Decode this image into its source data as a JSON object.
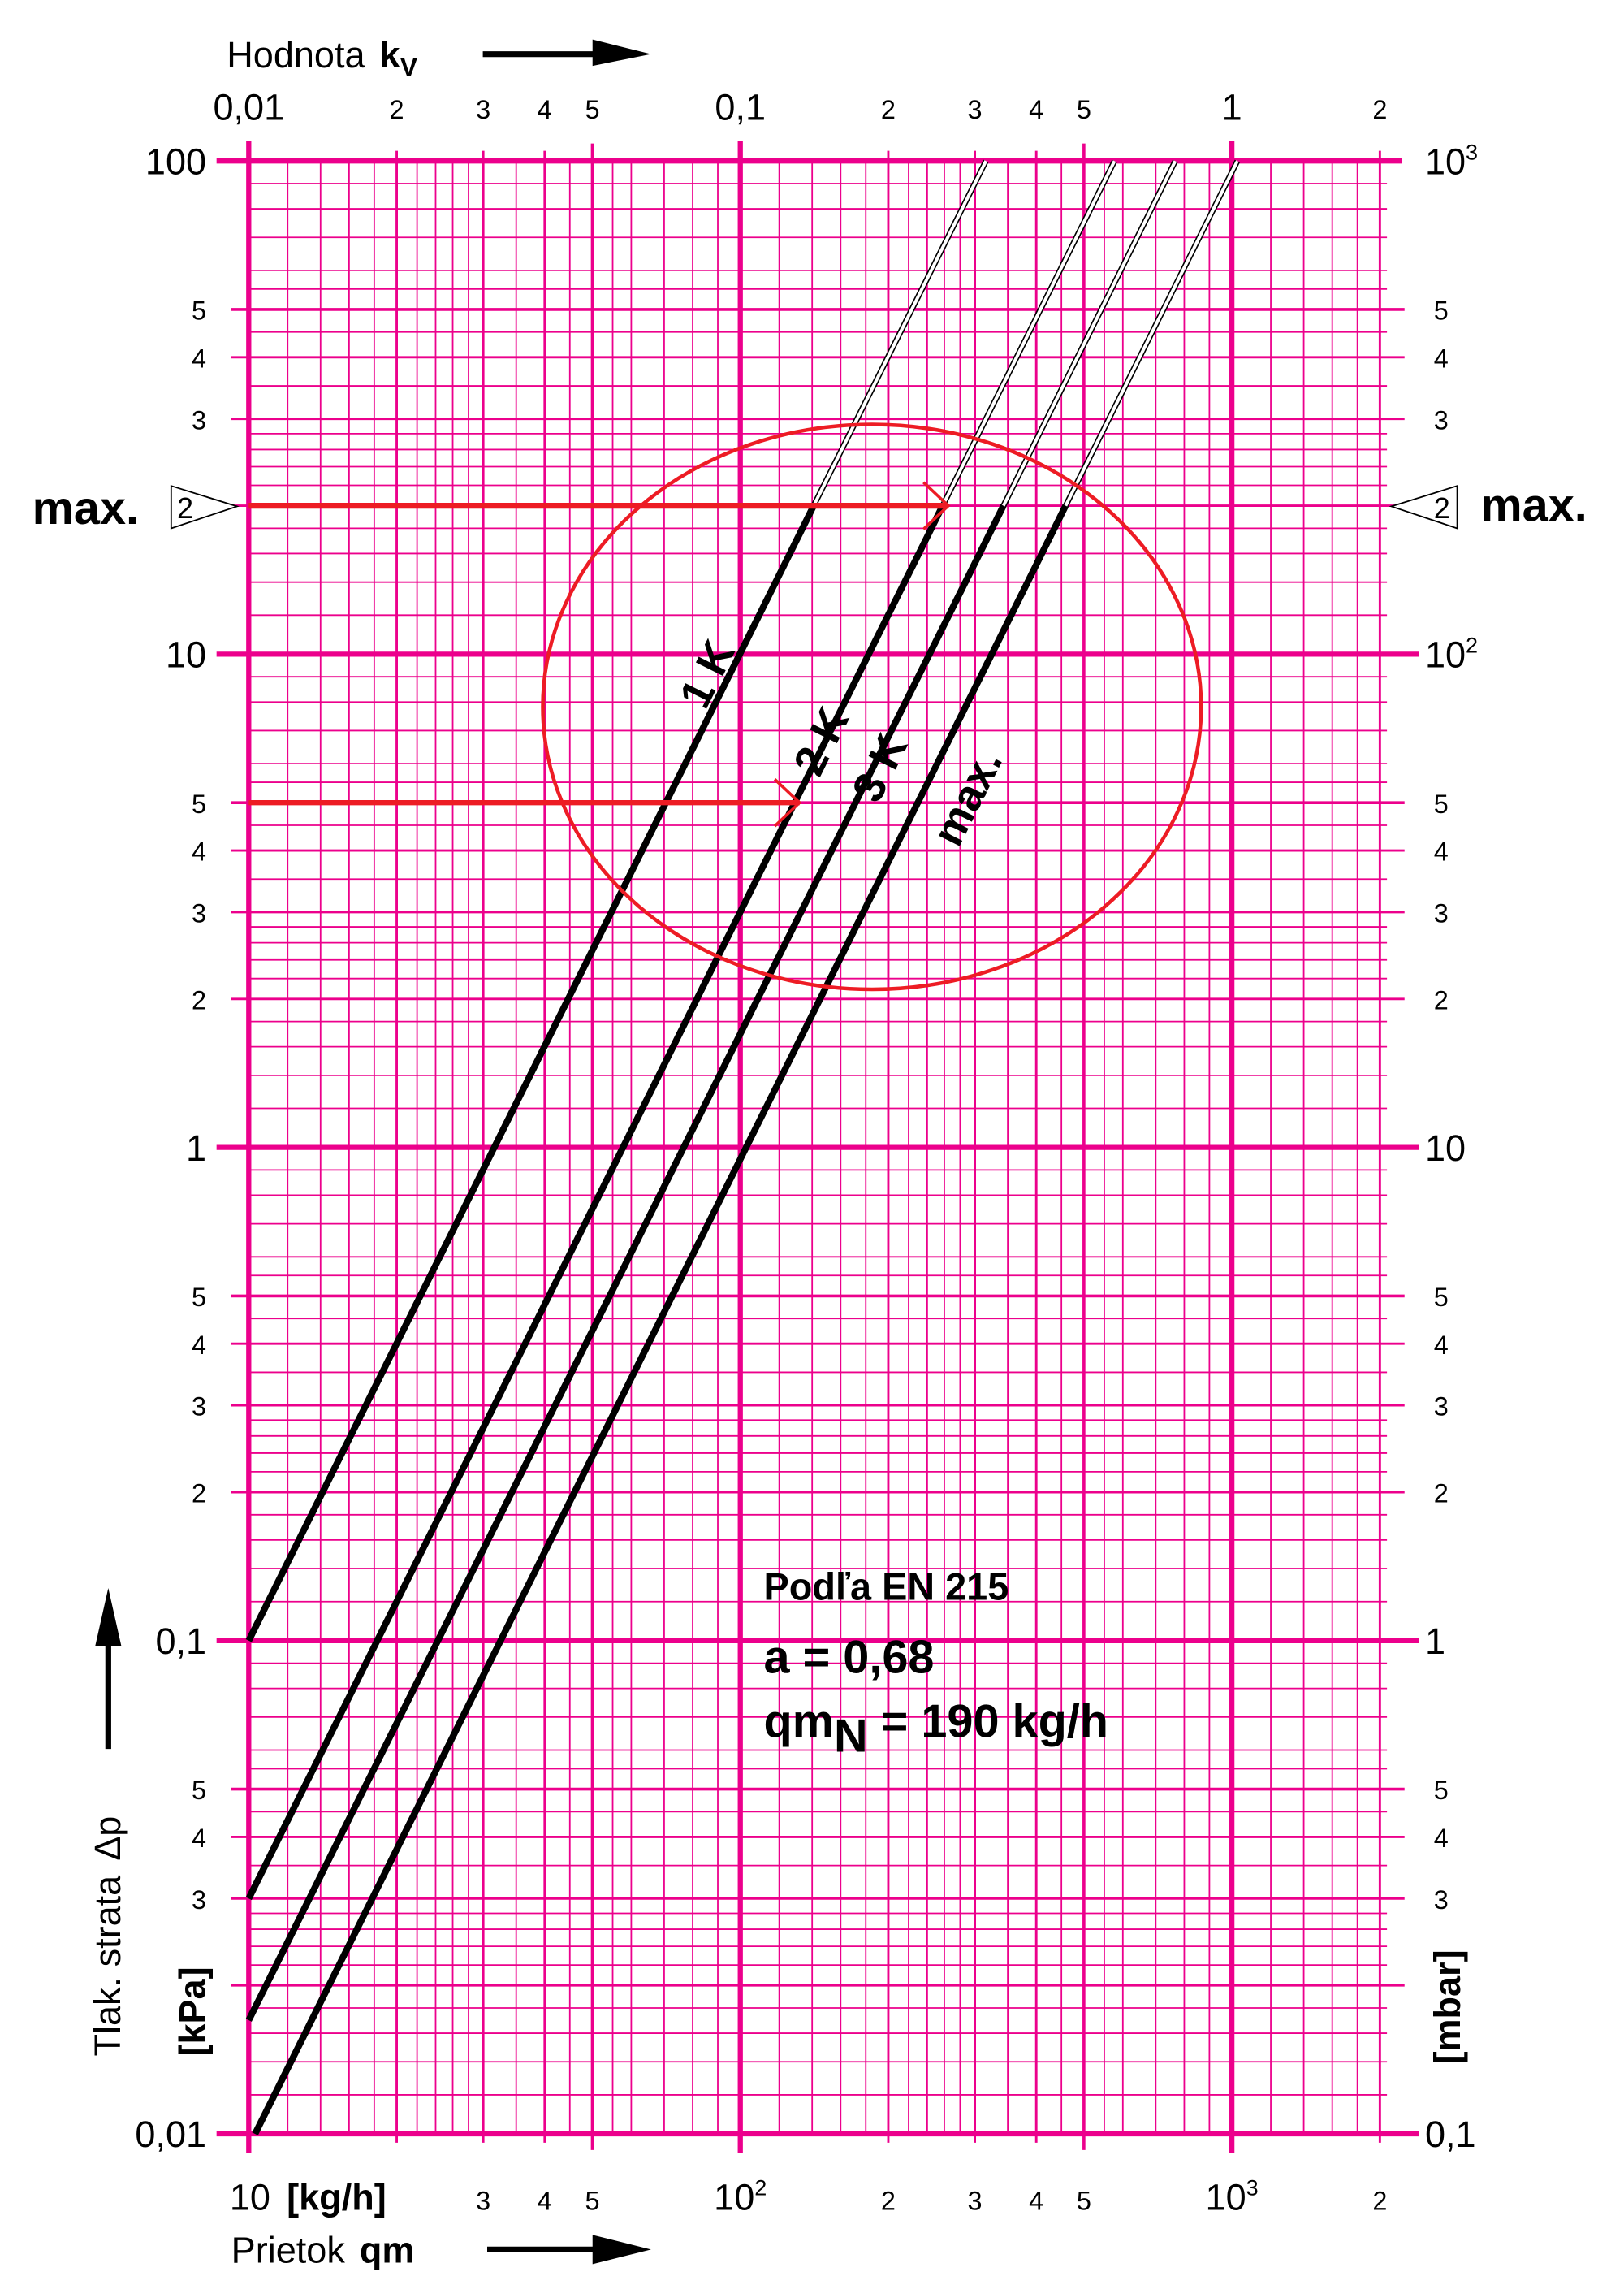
{
  "chart_data": {
    "type": "line",
    "scale": "log-log",
    "grid": true,
    "colors": {
      "grid": "#ec008c",
      "curves": "#000000",
      "annotation": "#ed1c24"
    },
    "top_axis": {
      "label": "Hodnota",
      "label_symbol": "k",
      "label_sub": "V",
      "range": [
        0.01,
        2
      ],
      "ticks": [
        {
          "v": 0.01,
          "t": "0,01"
        },
        {
          "v": 0.02,
          "t": "2"
        },
        {
          "v": 0.03,
          "t": "3"
        },
        {
          "v": 0.04,
          "t": "4"
        },
        {
          "v": 0.05,
          "t": "5"
        },
        {
          "v": 0.1,
          "t": "0,1"
        },
        {
          "v": 0.2,
          "t": "2"
        },
        {
          "v": 0.3,
          "t": "3"
        },
        {
          "v": 0.4,
          "t": "4"
        },
        {
          "v": 0.5,
          "t": "5"
        },
        {
          "v": 1,
          "t": "1"
        },
        {
          "v": 2,
          "t": "2"
        }
      ]
    },
    "x_axis": {
      "label": "Prietok",
      "label_symbol": "qm",
      "unit": "[kg/h]",
      "range": [
        10,
        2000
      ],
      "ticks": [
        {
          "v": 10,
          "t": "10"
        },
        {
          "v": 30,
          "t": "3"
        },
        {
          "v": 40,
          "t": "4"
        },
        {
          "v": 50,
          "t": "5"
        },
        {
          "v": 100,
          "t": "10",
          "sup": "2"
        },
        {
          "v": 200,
          "t": "2"
        },
        {
          "v": 300,
          "t": "3"
        },
        {
          "v": 400,
          "t": "4"
        },
        {
          "v": 500,
          "t": "5"
        },
        {
          "v": 1000,
          "t": "10",
          "sup": "3"
        },
        {
          "v": 2000,
          "t": "2"
        }
      ]
    },
    "y_axis": {
      "label": "Tlak. strata",
      "label_symbol": "Δp",
      "unit": "[kPa]",
      "range": [
        0.01,
        100
      ],
      "ticks": [
        {
          "v": 100,
          "t": "100"
        },
        {
          "v": 50,
          "t": "5"
        },
        {
          "v": 40,
          "t": "4"
        },
        {
          "v": 30,
          "t": "3"
        },
        {
          "v": 10,
          "t": "10"
        },
        {
          "v": 5,
          "t": "5"
        },
        {
          "v": 4,
          "t": "4"
        },
        {
          "v": 3,
          "t": "3"
        },
        {
          "v": 2,
          "t": "2"
        },
        {
          "v": 1,
          "t": "1"
        },
        {
          "v": 0.5,
          "t": "5"
        },
        {
          "v": 0.4,
          "t": "4"
        },
        {
          "v": 0.3,
          "t": "3"
        },
        {
          "v": 0.2,
          "t": "2"
        },
        {
          "v": 0.1,
          "t": "0,1"
        },
        {
          "v": 0.05,
          "t": "5"
        },
        {
          "v": 0.04,
          "t": "4"
        },
        {
          "v": 0.03,
          "t": "3"
        },
        {
          "v": 0.01,
          "t": "0,01"
        }
      ]
    },
    "right_axis": {
      "unit": "[mbar]",
      "range": [
        0.1,
        1000
      ],
      "ticks": [
        {
          "v": 100,
          "t": "10",
          "sup": "3"
        },
        {
          "v": 50,
          "t": "5"
        },
        {
          "v": 40,
          "t": "4"
        },
        {
          "v": 30,
          "t": "3"
        },
        {
          "v": 10,
          "t": "10",
          "sup": "2"
        },
        {
          "v": 5,
          "t": "5"
        },
        {
          "v": 4,
          "t": "4"
        },
        {
          "v": 3,
          "t": "3"
        },
        {
          "v": 2,
          "t": "2"
        },
        {
          "v": 1,
          "t": "10"
        },
        {
          "v": 0.5,
          "t": "5"
        },
        {
          "v": 0.4,
          "t": "4"
        },
        {
          "v": 0.3,
          "t": "3"
        },
        {
          "v": 0.2,
          "t": "2"
        },
        {
          "v": 0.1,
          "t": "1"
        },
        {
          "v": 0.05,
          "t": "5"
        },
        {
          "v": 0.04,
          "t": "4"
        },
        {
          "v": 0.03,
          "t": "3"
        },
        {
          "v": 0.01,
          "t": "0,1"
        }
      ]
    },
    "max_marker": {
      "value": 20,
      "tick_label": "2",
      "label": "max."
    },
    "series": [
      {
        "name": "1 K",
        "points": [
          [
            10,
            0.1
          ],
          [
            141,
            20
          ],
          [
            316,
            100
          ]
        ]
      },
      {
        "name": "2 K",
        "points": [
          [
            10,
            0.03
          ],
          [
            258,
            20
          ],
          [
            577,
            100
          ]
        ]
      },
      {
        "name": "3 K",
        "points": [
          [
            10,
            0.017
          ],
          [
            343,
            20
          ],
          [
            767,
            100
          ]
        ]
      },
      {
        "name": "max.",
        "points": [
          [
            10.3,
            0.01
          ],
          [
            459,
            20
          ],
          [
            1026,
            100
          ]
        ]
      }
    ],
    "annotation_arrows": [
      {
        "y": 20,
        "x_from": 10,
        "x_to": 265
      },
      {
        "y": 5,
        "x_from": 10,
        "x_to": 132
      }
    ],
    "annotation_ellipse": {
      "center": [
        180,
        6.5
      ],
      "note": "highlighted region"
    },
    "notes": {
      "line1": "Podľa EN 215",
      "line2": "a = 0,68",
      "line3_pre": "qm",
      "line3_sub": "N",
      "line3_post": " = 190 kg/h"
    }
  }
}
